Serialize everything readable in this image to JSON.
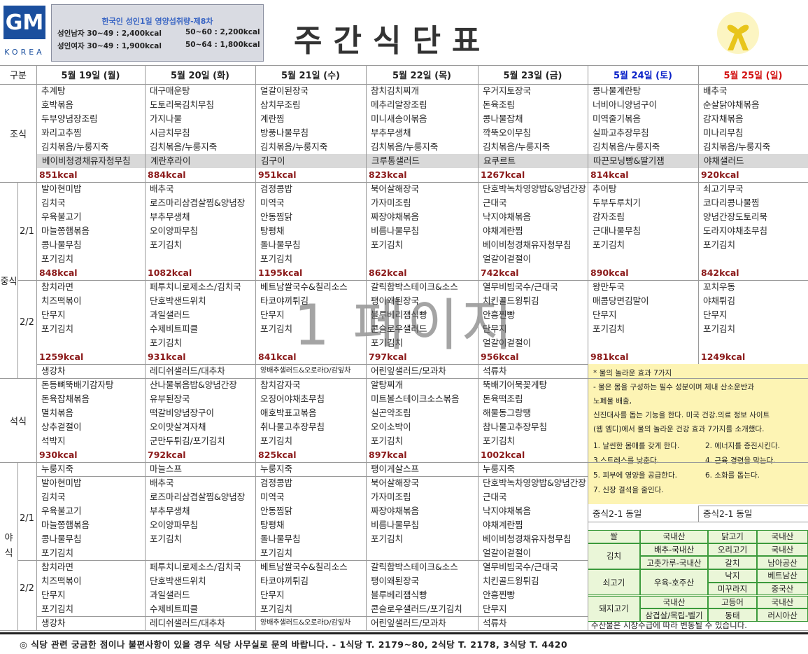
{
  "header": {
    "logo": "GM",
    "logo_sub": "KOREA",
    "nutrition": {
      "title": "한국인 성인1일 영양섭취량-제8차",
      "rows": [
        [
          "성인남자 30~49 : 2,400kcal",
          "50~60 : 2,200kcal"
        ],
        [
          "성인여자 30~49 : 1,900kcal",
          "50~64 : 1,800kcal"
        ]
      ]
    },
    "title": "주간식단표"
  },
  "watermark": "1 페이지",
  "menu": {
    "corner": "구분",
    "days": [
      "5월 19일 (월)",
      "5월 20일 (화)",
      "5월 21일 (수)",
      "5월 22일 (목)",
      "5월 23일 (금)",
      "5월 24일 (토)",
      "5월 25일 (일)"
    ],
    "breakfast": {
      "label": "조식",
      "days": [
        {
          "items": [
            "추계탕",
            "호박볶음",
            "두부양념장조림",
            "꽈리고추찜",
            "김치볶음/누룽지죽"
          ],
          "special": "베이비청경채유자청무침",
          "kcal": "851kcal"
        },
        {
          "items": [
            "대구매운탕",
            "도토리묵김치무침",
            "가지나물",
            "시금치무침",
            "김치볶음/누룽지죽"
          ],
          "special": "계란후라이",
          "kcal": "884kcal"
        },
        {
          "items": [
            "얼갈이된장국",
            "삼치무조림",
            "계란찜",
            "방풍나물무침",
            "김치볶음/누룽지죽"
          ],
          "special": "김구이",
          "kcal": "951kcal"
        },
        {
          "items": [
            "참치김치찌개",
            "메추리알장조림",
            "미니새송이볶음",
            "부추무생채",
            "김치볶음/누룽지죽"
          ],
          "special": "크루통샐러드",
          "kcal": "823kcal"
        },
        {
          "items": [
            "우거지토장국",
            "돈육조림",
            "콩나물잡채",
            "깍뚝오이무침",
            "김치볶음/누룽지죽"
          ],
          "special": "요쿠르트",
          "kcal": "1267kcal"
        },
        {
          "items": [
            "콩나물계란탕",
            "너비아니양념구이",
            "미역줄기볶음",
            "실파고추장무침",
            "김치볶음/누룽지죽"
          ],
          "special": "따끈모닝빵&딸기잼",
          "kcal": "814kcal"
        },
        {
          "items": [
            "배추국",
            "순살닭야채볶음",
            "감자채볶음",
            "미나리무침",
            "김치볶음/누룽지죽"
          ],
          "special": "야채샐러드",
          "kcal": "920kcal"
        }
      ]
    },
    "lunch": {
      "label": "중식",
      "courses": [
        {
          "label": "2/1",
          "days": [
            {
              "items": [
                "발아현미밥",
                "김치국",
                "우육불고기",
                "마늘쫑햄볶음",
                "콩나물무침",
                "포기김치"
              ],
              "kcal": "848kcal"
            },
            {
              "items": [
                "배추국",
                "로즈마리삼겹살찜&양념장",
                "부추무생채",
                "오이양파무침",
                "포기김치"
              ],
              "kcal": "1082kcal"
            },
            {
              "items": [
                "검정콩밥",
                "미역국",
                "안동찜닭",
                "탕평채",
                "돌나물무침",
                "포기김치"
              ],
              "kcal": "1195kcal"
            },
            {
              "items": [
                "북어살해장국",
                "가자미조림",
                "짜장야채볶음",
                "비름나물무침",
                "포기김치"
              ],
              "kcal": "862kcal"
            },
            {
              "items": [
                "단호박녹차영양밥&양념간장",
                "근대국",
                "낙지야채볶음",
                "야채계란찜",
                "베이비청경채유자청무침",
                "얼갈이겉절이"
              ],
              "kcal": "742kcal"
            },
            {
              "items": [
                "추어탕",
                "두부두루치기",
                "감자조림",
                "근대나물무침",
                "포기김치"
              ],
              "kcal": "890kcal"
            },
            {
              "items": [
                "쇠고기무국",
                "코다리콩나물찜",
                "양념간장도토리묵",
                "도라지야채초무침",
                "포기김치"
              ],
              "kcal": "842kcal"
            }
          ]
        },
        {
          "label": "2/2",
          "days": [
            {
              "items": [
                "참치라면",
                "치즈떡볶이",
                "단무지",
                "포기김치"
              ],
              "kcal": "1259kcal"
            },
            {
              "items": [
                "페투치니로제소스/김치국",
                "단호박샌드위치",
                "과일샐러드",
                "수제비트피클",
                "포기김치"
              ],
              "kcal": "931kcal"
            },
            {
              "items": [
                "베트남쌀국수&칠리소스",
                "타코야끼튀김",
                "단무지",
                "포기김치"
              ],
              "kcal": "841kcal"
            },
            {
              "items": [
                "갈릭함박스테이크&소스",
                "팽이왜된장국",
                "블루베리잼식빵",
                "콘슬로우샐러드",
                "포기김치"
              ],
              "kcal": "797kcal"
            },
            {
              "items": [
                "열무비빔국수/근대국",
                "치킨골드윙튀김",
                "안흥찐빵",
                "단무지",
                "얼갈이겉절이"
              ],
              "kcal": "956kcal"
            },
            {
              "items": [
                "왕만두국",
                "매콤당면김말이",
                "단무지",
                "포기김치"
              ],
              "kcal": "981kcal"
            },
            {
              "items": [
                "꼬치우동",
                "야채튀김",
                "단무지",
                "포기김치"
              ],
              "kcal": "1249kcal"
            }
          ]
        }
      ],
      "tea": [
        "생강차",
        "레디쉬샐러드/대추차",
        "양배추샐러드&오로라D/감잎차",
        "어린잎샐러드/모과차",
        "석류차"
      ]
    },
    "dinner": {
      "label": "석식",
      "days": [
        {
          "items": [
            "돈등뼈뚝배기감자탕",
            "돈육잡채볶음",
            "멸치볶음",
            "상추겉절이",
            "석박지"
          ],
          "kcal": "930kcal"
        },
        {
          "items": [
            "산나물볶음밥&양념간장",
            "유부된장국",
            "떡갈비양념장구이",
            "오이맛살겨자채",
            "군만두튀김/포기김치"
          ],
          "kcal": "792kcal"
        },
        {
          "items": [
            "참치감자국",
            "오징어야채초무침",
            "애호박표고볶음",
            "취나물고추장무침",
            "포기김치"
          ],
          "kcal": "825kcal"
        },
        {
          "items": [
            "알탕찌개",
            "미트볼스테이크소스볶음",
            "실곤약조림",
            "오이소박이",
            "포기김치"
          ],
          "kcal": "897kcal"
        },
        {
          "items": [
            "뚝배기어묵꽂게탕",
            "돈육떡조림",
            "해물동그랑땡",
            "참나물고추장무침",
            "포기김치"
          ],
          "kcal": "1002kcal"
        }
      ]
    },
    "night": {
      "label": "야식",
      "soup": [
        "누룽지죽",
        "마늘스프",
        "누룽지죽",
        "팽이게살스프",
        "누룽지죽"
      ],
      "courses": [
        {
          "label": "2/1",
          "days": [
            {
              "items": [
                "발아현미밥",
                "김치국",
                "우육불고기",
                "마늘쫑햄볶음",
                "콩나물무침",
                "포기김치"
              ]
            },
            {
              "items": [
                "배추국",
                "로즈마리삼겹살찜&양념장",
                "부추무생채",
                "오이양파무침",
                "포기김치"
              ]
            },
            {
              "items": [
                "검정콩밥",
                "미역국",
                "안동찜닭",
                "탕평채",
                "돌나물무침",
                "포기김치"
              ]
            },
            {
              "items": [
                "북어살해장국",
                "가자미조림",
                "짜장야채볶음",
                "비름나물무침",
                "포기김치"
              ]
            },
            {
              "items": [
                "단호박녹차영양밥&양념간장",
                "근대국",
                "낙지야채볶음",
                "야채계란찜",
                "베이비청경채유자청무침",
                "얼갈이겉절이"
              ]
            }
          ]
        },
        {
          "label": "2/2",
          "days": [
            {
              "items": [
                "참치라면",
                "치즈떡볶이",
                "단무지",
                "포기김치"
              ]
            },
            {
              "items": [
                "페투치니로제소스/김치국",
                "단호박샌드위치",
                "과일샐러드",
                "수제비트피클"
              ]
            },
            {
              "items": [
                "베트남쌀국수&칠리소스",
                "타코야끼튀김",
                "단무지",
                "포기김치"
              ]
            },
            {
              "items": [
                "갈릭함박스테이크&소스",
                "팽이왜된장국",
                "블루베리잼식빵",
                "콘슬로우샐러드/포기김치"
              ]
            },
            {
              "items": [
                "열무비빔국수/근대국",
                "치킨골드윙튀김",
                "안흥찐빵",
                "단무지"
              ]
            }
          ]
        }
      ],
      "tea": [
        "생강차",
        "레디쉬샐러드/대추차",
        "양배추샐러드&오로라D/감잎차",
        "어린잎샐러드/모과차",
        "석류차"
      ],
      "weekend": [
        "중식2-1 동일",
        "중식2-1 동일"
      ]
    }
  },
  "water_note": {
    "title": "* 물의 놀라운 효과 7가지",
    "lines": [
      "- 물은 몸을 구성하는 필수 성분이며 체내 산소운반과",
      "노폐물 배출,",
      "신진대사를 돕는 기능을 한다. 미국 건강.의료 정보 사이트",
      "(웹 엠디)에서 물의 놀라운 건강 효과 7가지를 소개했다."
    ],
    "effects": [
      "1. 날씬한 몸매를 갖게 한다.",
      "2. 에너지를 증진시킨다.",
      "3.스트레스를 낮춘다.",
      "4. 근육 경련을 막는다.",
      "5. 피부에 영양을 공급한다.",
      "6. 소화를 돕는다.",
      "7. 신장 결석을 줄인다."
    ]
  },
  "origin": {
    "left": [
      {
        "label": "쌀",
        "values": [
          "국내산"
        ]
      },
      {
        "label": "김치",
        "values": [
          "배추-국내산",
          "고춧가루-국내산"
        ]
      },
      {
        "label": "쇠고기",
        "values": [
          "우육-호주산"
        ]
      },
      {
        "label": "돼지고기",
        "values": [
          "국내산",
          "삼겹살/목립-벨기"
        ]
      }
    ],
    "right": [
      {
        "label": "닭고기",
        "value": "국내산"
      },
      {
        "label": "오리고기",
        "value": "국내산"
      },
      {
        "label": "갈치",
        "value": "남아공산"
      },
      {
        "label": "낙지",
        "value": "베트남산"
      },
      {
        "label": "미꾸라지",
        "value": "중국산"
      },
      {
        "label": "고등어",
        "value": "국내산"
      },
      {
        "label": "동태",
        "value": "러시아산"
      }
    ],
    "note": "수산물은 시장수급에 따라 변동될 수 있습니다."
  },
  "footer": "◎ 식당 관련 궁금한 점이나 불편사항이 있을 경우 식당 사무실로 문의 바랍니다. - 1식당 T. 2179~80,   2식당 T. 2178,   3식당 T. 4420"
}
